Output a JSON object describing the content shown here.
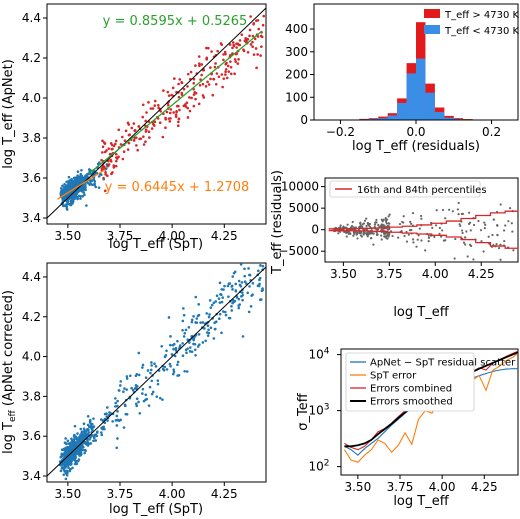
{
  "chart_data": [
    {
      "type": "scatter",
      "xlabel": "log T_eff (SpT)",
      "ylabel": "log T_eff (ApNet)",
      "xticks": [
        "3.50",
        "3.75",
        "4.00",
        "4.25"
      ],
      "yticks": [
        "3.4",
        "3.6",
        "3.8",
        "4.0",
        "4.2",
        "4.4"
      ],
      "xlim": [
        3.4,
        4.45
      ],
      "ylim": [
        3.37,
        4.47
      ],
      "annotations": [
        "y = 0.8595x + 0.5265",
        "y = 0.6445x + 1.2708"
      ],
      "fits": [
        {
          "slope": 0.8595,
          "intercept": 0.5265,
          "color": "#2ca02c"
        },
        {
          "slope": 0.6445,
          "intercept": 1.2708,
          "color": "#ff7f0e"
        }
      ],
      "series": [
        {
          "name": "T_eff > 4730 K",
          "color": "#d62728",
          "x_range": [
            3.67,
            4.44
          ]
        },
        {
          "name": "T_eff < 4730 K",
          "color": "#1f77b4",
          "x_range": [
            3.45,
            3.67
          ]
        }
      ],
      "identity_line": true
    },
    {
      "type": "bar",
      "xlabel": "log T_eff (residuals)",
      "ylabel": "",
      "xticks": [
        "−0.2",
        "0.0",
        "0.2"
      ],
      "yticks": [
        "0",
        "100",
        "200",
        "300",
        "400"
      ],
      "xlim": [
        -0.27,
        0.27
      ],
      "ylim": [
        0,
        510
      ],
      "legend": [
        "T_eff > 4730 K",
        "T_eff < 4730 K"
      ],
      "legend_position": "top-right",
      "bin_left": [
        -0.25,
        -0.225,
        -0.2,
        -0.175,
        -0.15,
        -0.125,
        -0.1,
        -0.075,
        -0.05,
        -0.025,
        0.0,
        0.025,
        0.05,
        0.075,
        0.1,
        0.125,
        0.15,
        0.175,
        0.2,
        0.225
      ],
      "bin_width": 0.025,
      "series": [
        {
          "name": "T_eff > 4730 K",
          "color": "#e31a1c",
          "values": [
            0,
            0,
            0,
            2,
            5,
            8,
            15,
            30,
            95,
            250,
            430,
            160,
            55,
            18,
            8,
            4,
            2,
            1,
            1,
            0
          ]
        },
        {
          "name": "T_eff < 4730 K",
          "color": "#3a8ee6",
          "values": [
            0,
            0,
            0,
            1,
            3,
            5,
            8,
            20,
            75,
            205,
            270,
            120,
            35,
            10,
            4,
            2,
            1,
            0,
            0,
            0
          ]
        }
      ]
    },
    {
      "type": "scatter",
      "xlabel": "log T_eff",
      "ylabel": "T_eff (residuals)",
      "xticks": [
        "3.50",
        "3.75",
        "4.00",
        "4.25"
      ],
      "yticks": [
        "−5000",
        "0",
        "5000",
        "10000"
      ],
      "xlim": [
        3.4,
        4.45
      ],
      "ylim": [
        -7500,
        12000
      ],
      "legend": [
        "16th and 84th percentiles"
      ],
      "legend_position": "top-left",
      "percentiles": {
        "x": [
          3.42,
          3.5,
          3.58,
          3.66,
          3.74,
          3.82,
          3.9,
          3.98,
          4.06,
          4.14,
          4.22,
          4.3,
          4.38,
          4.45
        ],
        "p84": [
          200,
          250,
          300,
          400,
          600,
          800,
          1100,
          1500,
          2000,
          2600,
          3300,
          3900,
          4300,
          4400
        ],
        "p16": [
          -200,
          -250,
          -300,
          -400,
          -600,
          -800,
          -1000,
          -1300,
          -1700,
          -2300,
          -3000,
          -3800,
          -4300,
          -4400
        ]
      }
    },
    {
      "type": "line",
      "xlabel": "log T_eff",
      "ylabel": "σ_Teff",
      "xticks": [
        "3.50",
        "3.75",
        "4.00",
        "4.25"
      ],
      "yticks": [
        "10^2",
        "10^3",
        "10^4"
      ],
      "xlim": [
        3.4,
        4.45
      ],
      "ylim_log10": [
        1.85,
        4.1
      ],
      "legend_position": "top-left",
      "x": [
        3.42,
        3.46,
        3.5,
        3.54,
        3.58,
        3.62,
        3.66,
        3.7,
        3.74,
        3.78,
        3.82,
        3.86,
        3.9,
        3.94,
        3.98,
        4.02,
        4.06,
        4.1,
        4.14,
        4.18,
        4.22,
        4.26,
        4.3,
        4.34,
        4.38,
        4.42,
        4.45
      ],
      "series": [
        {
          "name": "ApNet − SpT residual scatter",
          "color": "#1f77b4",
          "values": [
            230,
            200,
            160,
            210,
            260,
            320,
            420,
            550,
            700,
            900,
            1100,
            1300,
            1500,
            1700,
            2000,
            2300,
            2700,
            3100,
            3500,
            3800,
            4200,
            4600,
            5000,
            5300,
            5500,
            5600,
            5600
          ]
        },
        {
          "name": "SpT error",
          "color": "#ff7f0e",
          "values": [
            200,
            130,
            120,
            160,
            200,
            300,
            260,
            180,
            240,
            400,
            250,
            700,
            1000,
            900,
            1500,
            2200,
            1700,
            2800,
            2100,
            3500,
            4200,
            2300,
            5200,
            6200,
            7800,
            9000,
            10500
          ]
        },
        {
          "name": "Errors combined",
          "color": "#d62728",
          "values": [
            260,
            220,
            200,
            230,
            300,
            420,
            480,
            600,
            780,
            1000,
            1150,
            1450,
            1750,
            1900,
            2400,
            3000,
            3100,
            3900,
            4000,
            5000,
            5800,
            5300,
            7000,
            8000,
            9300,
            10500,
            11500
          ]
        },
        {
          "name": "Errors smoothed",
          "color": "#000000",
          "values": [
            230,
            230,
            240,
            260,
            300,
            380,
            470,
            580,
            740,
            930,
            1150,
            1400,
            1700,
            2000,
            2400,
            2850,
            3300,
            3800,
            4300,
            4900,
            5600,
            6300,
            7100,
            8000,
            9000,
            10100,
            11000
          ]
        }
      ]
    }
  ],
  "legend_colors": {
    "fit_top": "#2ca02c",
    "fit_bottom": "#ff7f0e",
    "hot": "#d62728",
    "cool": "#1f77b4"
  }
}
